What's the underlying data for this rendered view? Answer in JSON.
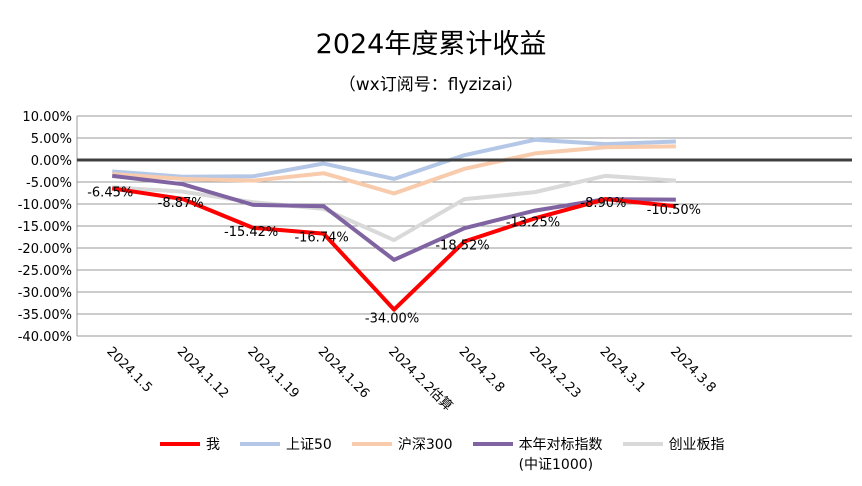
{
  "chart_data": {
    "type": "line",
    "title": "2024年度累计收益",
    "subtitle": "（wx订阅号：flyzizai）",
    "categories": [
      "2024.1.5",
      "2024.1.12",
      "2024.1.19",
      "2024.1.26",
      "2024.2.2估算",
      "2024.2.8",
      "2024.2.23",
      "2024.3.1",
      "2024.3.8"
    ],
    "ylim": [
      -40,
      10
    ],
    "yticks": [
      "10.00%",
      "5.00%",
      "0.00%",
      "-5.00%",
      "-10.00%",
      "-15.00%",
      "-20.00%",
      "-25.00%",
      "-30.00%",
      "-35.00%",
      "-40.00%"
    ],
    "grid": true,
    "legend_position": "bottom",
    "series": [
      {
        "name": "我",
        "color": "#ff0000",
        "values": [
          -6.45,
          -8.87,
          -15.42,
          -16.74,
          -34.0,
          -18.52,
          -13.25,
          -8.9,
          -10.5
        ],
        "labels": [
          "-6.45%",
          "-8.87%",
          "-15.42%",
          "-16.74%",
          "-34.00%",
          "-18.52%",
          "-13.25%",
          "-8.90%",
          "-10.50%"
        ]
      },
      {
        "name": "上证50",
        "color": "#b4c7e7",
        "values": [
          -2.6,
          -3.8,
          -3.7,
          -0.8,
          -4.3,
          1.1,
          4.6,
          3.6,
          4.2
        ]
      },
      {
        "name": "沪深300",
        "color": "#f8cbad",
        "values": [
          -3.2,
          -4.3,
          -4.7,
          -3.0,
          -7.6,
          -2.0,
          1.5,
          2.9,
          3.1
        ]
      },
      {
        "name": "本年对标指数",
        "name2": "(中证1000)",
        "color": "#8064a2",
        "values": [
          -3.6,
          -5.5,
          -10.2,
          -10.5,
          -22.7,
          -15.5,
          -11.5,
          -8.9,
          -9.0
        ]
      },
      {
        "name": "创业板指",
        "color": "#d9d9d9",
        "values": [
          -6.2,
          -7.2,
          -9.6,
          -11.1,
          -18.2,
          -8.9,
          -7.3,
          -3.6,
          -4.7
        ]
      }
    ]
  }
}
